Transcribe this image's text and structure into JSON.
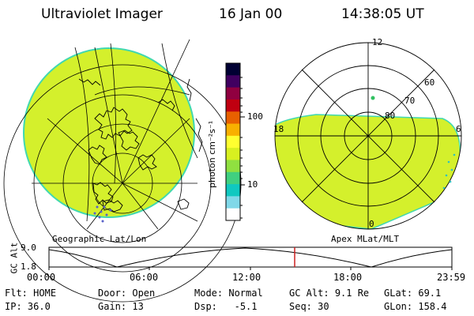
{
  "header": {
    "instrument": "Ultraviolet Imager",
    "date": "16 Jan 00",
    "time": "14:38:05 UT"
  },
  "colorbar": {
    "unit_label": "photon cm⁻²s⁻¹",
    "tick_labels": [
      "100",
      "10"
    ],
    "colors": [
      "#000033",
      "#400060",
      "#900040",
      "#c00010",
      "#e86000",
      "#f8b000",
      "#ffff30",
      "#d8f020",
      "#90e040",
      "#40d080",
      "#10c8c0",
      "#80d8e8",
      "#ffffff"
    ]
  },
  "left_map": {
    "caption": "Geographic Lat/Lon",
    "fill_color": "#d4f02c",
    "edge_color": "#40d8b0"
  },
  "right_map": {
    "caption": "Apex MLat/MLT",
    "mlt_labels": {
      "top": "12",
      "left": "18",
      "right": "6",
      "bottom": "0"
    },
    "lat_labels": [
      "60",
      "70",
      "80"
    ]
  },
  "altitude_plot": {
    "axis_label": "GC Alt",
    "y_ticks": [
      "9.0",
      "1.8"
    ],
    "x_ticks": [
      "00:00",
      "06:00",
      "12:00",
      "18:00",
      "23:59"
    ],
    "marker_time": "14:38",
    "marker_color": "#cc2020"
  },
  "info": [
    [
      {
        "label": "Flt:",
        "value": "HOME"
      },
      {
        "label": "Door:",
        "value": "Open"
      },
      {
        "label": "Mode:",
        "value": "Normal"
      },
      {
        "label": "GC Alt:",
        "value": "9.1 Re"
      },
      {
        "label": "GLat:",
        "value": "69.1"
      }
    ],
    [
      {
        "label": "IP:",
        "value": "36.0"
      },
      {
        "label": "Gain:",
        "value": "13"
      },
      {
        "label": "Dsp:",
        "value": "-5.1"
      },
      {
        "label": "Seq:",
        "value": "30"
      },
      {
        "label": "GLon:",
        "value": "158.4"
      }
    ]
  ]
}
